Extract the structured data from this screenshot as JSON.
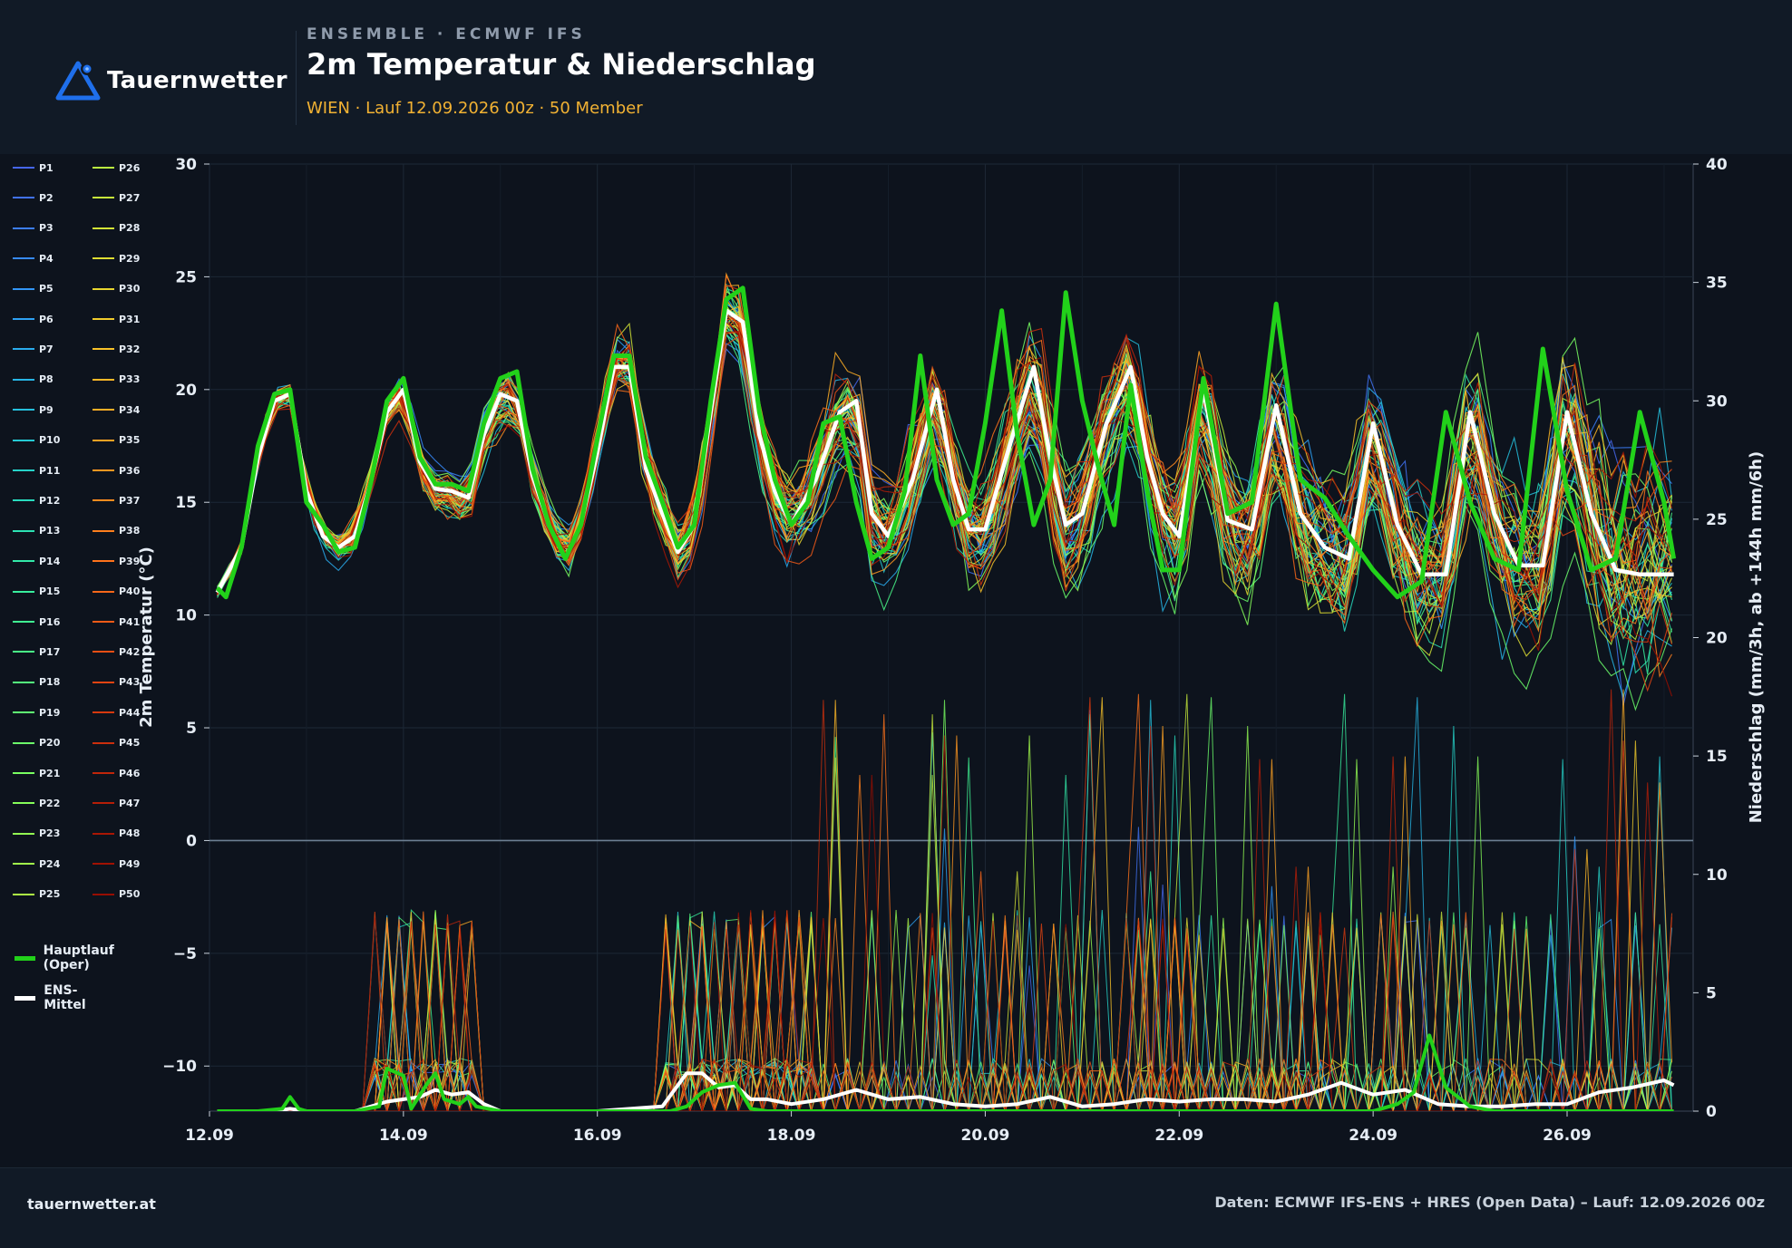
{
  "brand": {
    "name": "Tauernwetter",
    "logo_icon": "triangle-logo-icon",
    "accent": "#1f6feb"
  },
  "header": {
    "kicker": "ENSEMBLE · ECMWF IFS",
    "title": "2m Temperatur & Niederschlag",
    "subtitle": "WIEN · Lauf 12.09.2026 00z · 50 Member"
  },
  "footer": {
    "site": "tauernwetter.at",
    "source": "Daten: ECMWF IFS-ENS + HRES (Open Data) – Lauf: 12.09.2026 00z"
  },
  "chart_data": {
    "type": "line",
    "ylabel": "2m Temperatur (°C)",
    "y2label": "Niederschlag (mm/3h, ab +144h mm/6h)",
    "ylim": [
      -12,
      30
    ],
    "y2lim": [
      0,
      40
    ],
    "yticks": [
      -10,
      -5,
      0,
      5,
      10,
      15,
      20,
      25,
      30
    ],
    "y2ticks": [
      0,
      5,
      10,
      15,
      20,
      25,
      30,
      35,
      40
    ],
    "xlim": [
      12.0,
      27.3
    ],
    "xticks": [
      12,
      14,
      16,
      18,
      20,
      22,
      24,
      26
    ],
    "xtick_labels": [
      "12.09",
      "14.09",
      "16.09",
      "18.09",
      "20.09",
      "22.09",
      "24.09",
      "26.09"
    ],
    "grid": true,
    "zero_line": true,
    "legend": {
      "placement": "left",
      "members": [
        "P1",
        "P2",
        "P3",
        "P4",
        "P5",
        "P6",
        "P7",
        "P8",
        "P9",
        "P10",
        "P11",
        "P12",
        "P13",
        "P14",
        "P15",
        "P16",
        "P17",
        "P18",
        "P19",
        "P20",
        "P21",
        "P22",
        "P23",
        "P24",
        "P25",
        "P26",
        "P27",
        "P28",
        "P29",
        "P30",
        "P31",
        "P32",
        "P33",
        "P34",
        "P35",
        "P36",
        "P37",
        "P38",
        "P39",
        "P40",
        "P41",
        "P42",
        "P43",
        "P44",
        "P45",
        "P46",
        "P47",
        "P48",
        "P49",
        "P50"
      ],
      "oper_label": "Hauptlauf (Oper)",
      "mean_label": "ENS-Mittel"
    },
    "colors": {
      "oper": "#22d11a",
      "mean": "#ffffff",
      "colormap": "turbo"
    },
    "oper_temperature": {
      "x": [
        12.08,
        12.17,
        12.33,
        12.5,
        12.67,
        12.83,
        13.0,
        13.17,
        13.33,
        13.5,
        13.67,
        13.83,
        14.0,
        14.17,
        14.33,
        14.5,
        14.67,
        14.83,
        15.0,
        15.17,
        15.33,
        15.5,
        15.67,
        15.83,
        16.0,
        16.17,
        16.33,
        16.5,
        16.67,
        16.83,
        17.0,
        17.17,
        17.33,
        17.5,
        17.67,
        17.83,
        18.0,
        18.17,
        18.33,
        18.5,
        18.67,
        18.83,
        19.0,
        19.17,
        19.33,
        19.5,
        19.67,
        19.83,
        20.0,
        20.17,
        20.33,
        20.5,
        20.67,
        20.83,
        21.0,
        21.17,
        21.33,
        21.5,
        21.67,
        21.83,
        22.0,
        22.25,
        22.5,
        22.75,
        23.0,
        23.25,
        23.5,
        23.75,
        24.0,
        24.25,
        24.5,
        24.75,
        25.0,
        25.25,
        25.5,
        25.75,
        26.0,
        26.25,
        26.5,
        26.75,
        27.0,
        27.1
      ],
      "y": [
        11.2,
        10.8,
        13.0,
        17.5,
        19.8,
        20.0,
        15.0,
        14.0,
        12.8,
        13.0,
        16.0,
        19.5,
        20.5,
        17.0,
        15.8,
        15.8,
        15.5,
        18.5,
        20.5,
        20.8,
        16.5,
        14.0,
        12.5,
        14.0,
        17.8,
        21.5,
        21.5,
        17.0,
        15.0,
        13.0,
        14.0,
        19.5,
        24.0,
        24.5,
        19.0,
        16.0,
        14.0,
        15.0,
        18.5,
        18.8,
        15.0,
        12.5,
        13.0,
        15.5,
        21.5,
        16.0,
        14.0,
        14.5,
        18.5,
        23.5,
        18.0,
        14.0,
        16.0,
        24.3,
        19.5,
        16.5,
        14.0,
        20.2,
        15.5,
        12.0,
        12.0,
        20.5,
        14.5,
        15.0,
        23.8,
        16.0,
        15.2,
        13.5,
        12.0,
        10.8,
        11.5,
        19.0,
        15.0,
        12.5,
        12.0,
        21.8,
        15.5,
        12.0,
        12.5,
        19.0,
        15.0,
        12.5
      ]
    },
    "mean_temperature": {
      "x": [
        12.08,
        12.33,
        12.5,
        12.67,
        12.83,
        13.0,
        13.17,
        13.33,
        13.5,
        13.67,
        13.83,
        14.0,
        14.17,
        14.33,
        14.5,
        14.67,
        14.83,
        15.0,
        15.17,
        15.33,
        15.5,
        15.67,
        15.83,
        16.0,
        16.17,
        16.33,
        16.5,
        16.67,
        16.83,
        17.0,
        17.17,
        17.33,
        17.5,
        17.67,
        17.83,
        18.0,
        18.25,
        18.5,
        18.67,
        18.83,
        19.0,
        19.25,
        19.5,
        19.67,
        19.83,
        20.0,
        20.25,
        20.5,
        20.67,
        20.83,
        21.0,
        21.25,
        21.5,
        21.67,
        21.83,
        22.0,
        22.25,
        22.5,
        22.75,
        23.0,
        23.25,
        23.5,
        23.75,
        24.0,
        24.25,
        24.5,
        24.75,
        25.0,
        25.25,
        25.5,
        25.75,
        26.0,
        26.25,
        26.5,
        26.75,
        27.0,
        27.1
      ],
      "y": [
        11.0,
        13.0,
        17.0,
        19.5,
        19.8,
        15.5,
        13.5,
        13.0,
        13.5,
        16.0,
        19.0,
        20.0,
        16.8,
        15.6,
        15.5,
        15.2,
        18.0,
        19.8,
        19.5,
        16.2,
        14.0,
        12.5,
        14.0,
        17.2,
        21.0,
        21.0,
        16.5,
        14.5,
        12.8,
        14.0,
        19.0,
        23.5,
        23.0,
        18.0,
        15.5,
        14.0,
        16.0,
        19.0,
        19.5,
        14.5,
        13.5,
        16.0,
        20.0,
        16.0,
        13.8,
        13.8,
        17.5,
        21.0,
        17.0,
        14.0,
        14.5,
        18.5,
        21.0,
        17.0,
        14.5,
        13.5,
        20.0,
        14.2,
        13.8,
        19.3,
        14.5,
        13.0,
        12.5,
        18.5,
        14.0,
        11.8,
        11.8,
        19.0,
        14.5,
        12.2,
        12.2,
        19.0,
        14.5,
        12.0,
        11.8,
        11.8,
        11.8
      ]
    },
    "oper_precip": {
      "x": [
        12.08,
        12.5,
        12.75,
        12.83,
        12.92,
        13.0,
        13.5,
        13.75,
        13.83,
        14.0,
        14.08,
        14.25,
        14.33,
        14.42,
        14.58,
        14.67,
        14.75,
        15.0,
        16.0,
        16.5,
        16.75,
        16.92,
        17.08,
        17.25,
        17.42,
        17.58,
        17.75,
        18.0,
        24.0,
        24.25,
        24.42,
        24.58,
        24.75,
        25.0,
        25.25,
        27.1
      ],
      "y": [
        0,
        0,
        0.1,
        0.6,
        0.1,
        0,
        0,
        0.2,
        1.8,
        1.5,
        0.1,
        1.2,
        1.6,
        0.5,
        0.3,
        0.6,
        0.2,
        0,
        0,
        0,
        0,
        0.2,
        0.8,
        1.1,
        1.2,
        0.1,
        0,
        0,
        0,
        0.3,
        0.8,
        3.2,
        1.0,
        0.2,
        0,
        0
      ]
    },
    "mean_precip": {
      "x": [
        12.08,
        12.67,
        12.83,
        13.0,
        13.5,
        13.83,
        14.0,
        14.17,
        14.33,
        14.5,
        14.67,
        14.83,
        15.0,
        16.0,
        16.67,
        16.92,
        17.08,
        17.25,
        17.42,
        17.58,
        17.75,
        18.0,
        18.33,
        18.67,
        19.0,
        19.33,
        19.67,
        20.0,
        20.33,
        20.67,
        21.0,
        21.33,
        21.67,
        22.0,
        22.33,
        22.67,
        23.0,
        23.33,
        23.67,
        24.0,
        24.33,
        24.67,
        25.0,
        25.33,
        25.67,
        26.0,
        26.33,
        26.67,
        27.0,
        27.1
      ],
      "y": [
        0,
        0,
        0.1,
        0,
        0,
        0.4,
        0.5,
        0.6,
        0.9,
        0.7,
        0.8,
        0.3,
        0,
        0,
        0.2,
        1.6,
        1.6,
        1.0,
        1.1,
        0.5,
        0.5,
        0.3,
        0.5,
        0.9,
        0.5,
        0.6,
        0.3,
        0.2,
        0.3,
        0.6,
        0.2,
        0.3,
        0.5,
        0.4,
        0.5,
        0.5,
        0.4,
        0.7,
        1.2,
        0.7,
        0.9,
        0.3,
        0.2,
        0.2,
        0.3,
        0.3,
        0.8,
        1.0,
        1.3,
        1.1
      ]
    },
    "annotations": []
  }
}
